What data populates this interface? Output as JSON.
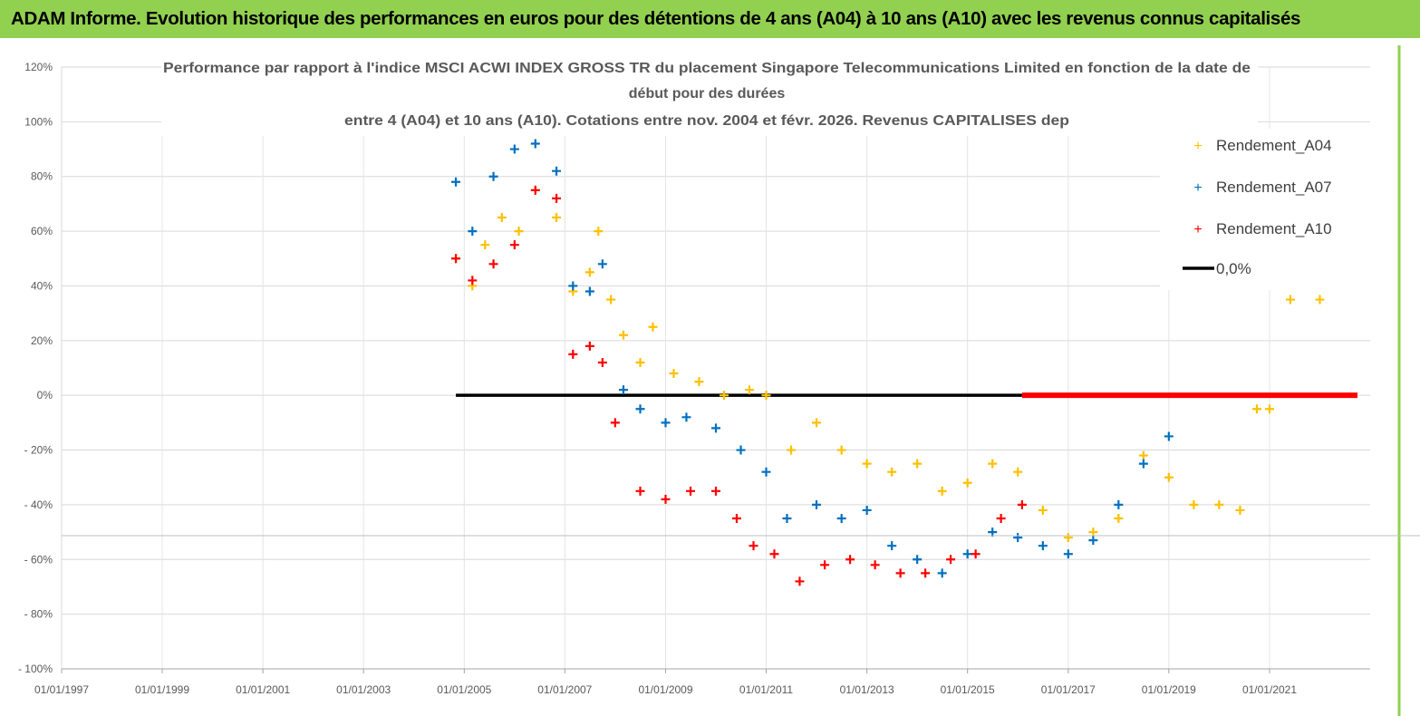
{
  "header": {
    "title": "ADAM Informe. Evolution historique des performances en euros pour des détentions de 4 ans (A04) à 10 ans (A10) avec les revenus connus capitalisés"
  },
  "colors": {
    "banner": "#92d050",
    "A04": "#ffc000",
    "A07": "#0070c0",
    "A10": "#ff0000",
    "zero": "#000000",
    "grid": "#d9d9d9"
  },
  "chart_data": {
    "type": "scatter",
    "title_lines": [
      "Performance par rapport à l'indice MSCI ACWI INDEX GROSS TR  du placement Singapore Telecommunications Limited  en fonction de la date de",
      "début pour des durées",
      "entre 4 (A04) et 10 ans (A10). Cotations entre nov. 2004 et févr. 2026. Revenus CAPITALISES dep"
    ],
    "xlabel": "",
    "ylabel": "",
    "x_range": [
      "1997-01-01",
      "2023-01-01"
    ],
    "ylim": [
      -100,
      120
    ],
    "y_ticks": [
      "120%",
      "100%",
      "80%",
      "60%",
      "40%",
      "20%",
      "0%",
      "- 20%",
      "- 40%",
      "- 60%",
      "- 80%",
      "- 100%"
    ],
    "x_ticks": [
      "01/01/1997",
      "01/01/1999",
      "01/01/2001",
      "01/01/2003",
      "01/01/2005",
      "01/01/2007",
      "01/01/2009",
      "01/01/2011",
      "01/01/2013",
      "01/01/2015",
      "01/01/2017",
      "01/01/2019",
      "01/01/2021"
    ],
    "grid": "horizontal",
    "legend_position": "top-right",
    "series": [
      {
        "name": "Rendement_A04",
        "marker": "+",
        "points": [
          [
            "2004-11-01",
            50
          ],
          [
            "2005-03-01",
            40
          ],
          [
            "2005-06-01",
            55
          ],
          [
            "2005-10-01",
            65
          ],
          [
            "2006-02-01",
            60
          ],
          [
            "2006-06-01",
            75
          ],
          [
            "2006-11-01",
            65
          ],
          [
            "2007-03-01",
            38
          ],
          [
            "2007-07-01",
            45
          ],
          [
            "2007-09-01",
            60
          ],
          [
            "2007-12-01",
            35
          ],
          [
            "2008-03-01",
            22
          ],
          [
            "2008-07-01",
            12
          ],
          [
            "2008-10-01",
            25
          ],
          [
            "2009-03-01",
            8
          ],
          [
            "2009-09-01",
            5
          ],
          [
            "2010-03-01",
            0
          ],
          [
            "2010-09-01",
            2
          ],
          [
            "2011-01-01",
            0
          ],
          [
            "2011-07-01",
            -20
          ],
          [
            "2012-01-01",
            -10
          ],
          [
            "2012-07-01",
            -20
          ],
          [
            "2013-01-01",
            -25
          ],
          [
            "2013-07-01",
            -28
          ],
          [
            "2014-01-01",
            -25
          ],
          [
            "2014-07-01",
            -35
          ],
          [
            "2015-01-01",
            -32
          ],
          [
            "2015-07-01",
            -25
          ],
          [
            "2016-01-01",
            -28
          ],
          [
            "2016-07-01",
            -42
          ],
          [
            "2017-01-01",
            -52
          ],
          [
            "2017-07-01",
            -50
          ],
          [
            "2018-01-01",
            -45
          ],
          [
            "2018-07-01",
            -22
          ],
          [
            "2019-01-01",
            -30
          ],
          [
            "2019-07-01",
            -40
          ],
          [
            "2020-01-01",
            -40
          ],
          [
            "2020-06-01",
            -42
          ],
          [
            "2020-10-01",
            -5
          ],
          [
            "2021-01-01",
            -5
          ],
          [
            "2021-06-01",
            35
          ],
          [
            "2022-01-01",
            35
          ]
        ]
      },
      {
        "name": "Rendement_A07",
        "marker": "+",
        "points": [
          [
            "2004-11-01",
            78
          ],
          [
            "2005-03-01",
            60
          ],
          [
            "2005-08-01",
            80
          ],
          [
            "2006-01-01",
            90
          ],
          [
            "2006-06-01",
            92
          ],
          [
            "2006-11-01",
            82
          ],
          [
            "2007-03-01",
            40
          ],
          [
            "2007-07-01",
            38
          ],
          [
            "2007-10-01",
            48
          ],
          [
            "2008-03-01",
            2
          ],
          [
            "2008-07-01",
            -5
          ],
          [
            "2009-01-01",
            -10
          ],
          [
            "2009-06-01",
            -8
          ],
          [
            "2010-01-01",
            -12
          ],
          [
            "2010-07-01",
            -20
          ],
          [
            "2011-01-01",
            -28
          ],
          [
            "2011-06-01",
            -45
          ],
          [
            "2012-01-01",
            -40
          ],
          [
            "2012-07-01",
            -45
          ],
          [
            "2013-01-01",
            -42
          ],
          [
            "2013-07-01",
            -55
          ],
          [
            "2014-01-01",
            -60
          ],
          [
            "2014-07-01",
            -65
          ],
          [
            "2015-01-01",
            -58
          ],
          [
            "2015-07-01",
            -50
          ],
          [
            "2016-01-01",
            -52
          ],
          [
            "2016-07-01",
            -55
          ],
          [
            "2017-01-01",
            -58
          ],
          [
            "2017-07-01",
            -53
          ],
          [
            "2018-01-01",
            -40
          ],
          [
            "2018-07-01",
            -25
          ],
          [
            "2019-01-01",
            -15
          ]
        ]
      },
      {
        "name": "Rendement_A10",
        "marker": "+",
        "points": [
          [
            "2004-11-01",
            50
          ],
          [
            "2005-03-01",
            42
          ],
          [
            "2005-08-01",
            48
          ],
          [
            "2006-01-01",
            55
          ],
          [
            "2006-06-01",
            75
          ],
          [
            "2006-11-01",
            72
          ],
          [
            "2007-03-01",
            15
          ],
          [
            "2007-07-01",
            18
          ],
          [
            "2007-10-01",
            12
          ],
          [
            "2008-01-01",
            -10
          ],
          [
            "2008-07-01",
            -35
          ],
          [
            "2009-01-01",
            -38
          ],
          [
            "2009-07-01",
            -35
          ],
          [
            "2010-01-01",
            -35
          ],
          [
            "2010-06-01",
            -45
          ],
          [
            "2010-10-01",
            -55
          ],
          [
            "2011-03-01",
            -58
          ],
          [
            "2011-09-01",
            -68
          ],
          [
            "2012-03-01",
            -62
          ],
          [
            "2012-09-01",
            -60
          ],
          [
            "2013-03-01",
            -62
          ],
          [
            "2013-09-01",
            -65
          ],
          [
            "2014-03-01",
            -65
          ],
          [
            "2014-09-01",
            -60
          ],
          [
            "2015-03-01",
            -58
          ],
          [
            "2015-09-01",
            -45
          ],
          [
            "2016-02-01",
            -40
          ]
        ]
      }
    ],
    "reference_line": {
      "name": "0,0%",
      "value": 0,
      "from": "2004-11-01",
      "to": "2016-02-01"
    },
    "flat_segment": {
      "series": "Rendement_A10",
      "value": 0,
      "from": "2016-02-01",
      "to": "2022-10-01"
    }
  }
}
